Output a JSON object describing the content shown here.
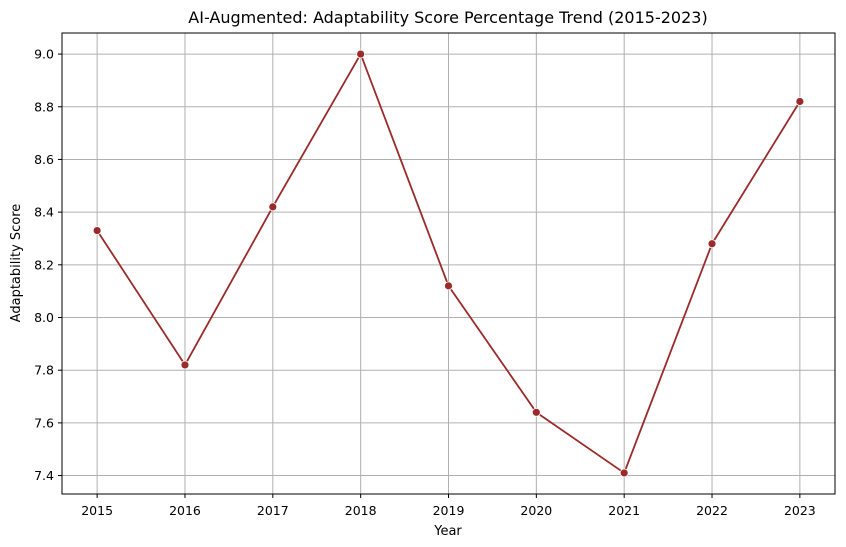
{
  "chart_data": {
    "type": "line",
    "title": "AI-Augmented: Adaptability Score Percentage Trend (2015-2023)",
    "xlabel": "Year",
    "ylabel": "Adaptability Score",
    "x": [
      2015,
      2016,
      2017,
      2018,
      2019,
      2020,
      2021,
      2022,
      2023
    ],
    "series": [
      {
        "values": [
          8.33,
          7.82,
          8.42,
          9.0,
          8.12,
          7.64,
          7.41,
          8.28,
          8.82
        ],
        "color": "#9b2a2a",
        "marker": "circle"
      }
    ],
    "xlim": [
      2014.6,
      2023.4
    ],
    "ylim": [
      7.33,
      9.08
    ],
    "yticks": [
      7.4,
      7.6,
      7.8,
      8.0,
      8.2,
      8.4,
      8.6,
      8.8,
      9.0
    ],
    "ytick_labels": [
      "7.4",
      "7.6",
      "7.8",
      "8.0",
      "8.2",
      "8.4",
      "8.6",
      "8.8",
      "9.0"
    ],
    "xtick_labels": [
      "2015",
      "2016",
      "2017",
      "2018",
      "2019",
      "2020",
      "2021",
      "2022",
      "2023"
    ],
    "grid": true,
    "legend": "none"
  }
}
